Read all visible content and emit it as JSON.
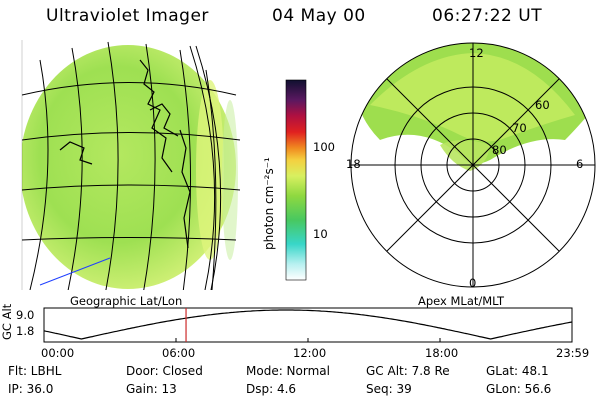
{
  "header": {
    "instrument": "Ultraviolet Imager",
    "date": "04 May 00",
    "time": "06:27:22 UT"
  },
  "colorbar": {
    "unit_label": "photon cm⁻²s⁻¹",
    "ticks": [
      "100",
      "10"
    ]
  },
  "polar_plot": {
    "mlt_labels": {
      "top": "12",
      "left": "18",
      "right": "6",
      "bottom": "0"
    },
    "mlat_labels": [
      "60",
      "70",
      "80"
    ]
  },
  "map_labels": {
    "geographic": "Geographic Lat/Lon",
    "apex": "Apex MLat/MLT"
  },
  "orbit_plot": {
    "ylabel": "GC Alt",
    "ymax": "9.0",
    "ymin": "1.8",
    "ymax_value": 9.0,
    "ymin_value": 1.8,
    "marker_hours": 6.456,
    "x_ticks": [
      "00:00",
      "06:00",
      "12:00",
      "18:00",
      "23:59"
    ]
  },
  "info": {
    "flt": "Flt: LBHL",
    "door": "Door: Closed",
    "mode": "Mode: Normal",
    "gcalt": "GC Alt: 7.8 Re",
    "glat": "GLat:  48.1",
    "ip": "IP: 36.0",
    "gain": "Gain: 13",
    "dsp": "Dsp:    4.6",
    "seq": "Seq: 39",
    "glon": "GLon:  56.6"
  },
  "colors": {
    "aurora_green": "#8fe04a",
    "aurora_yellow": "#e8f070",
    "marker_red": "#cc2a2a"
  }
}
